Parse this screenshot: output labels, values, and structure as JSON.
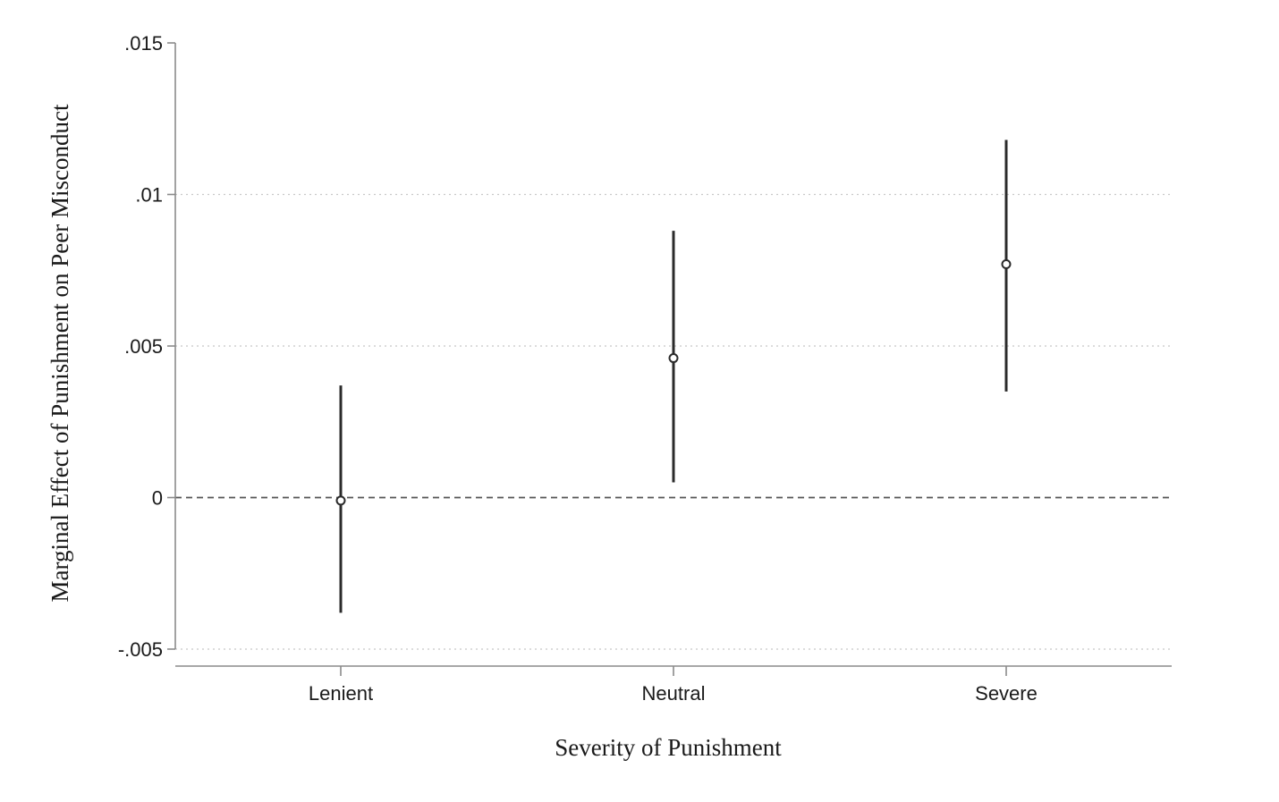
{
  "chart_data": {
    "type": "scatter",
    "subtype": "point-estimate-with-confidence-intervals",
    "title": "",
    "xlabel": "Severity of Punishment",
    "ylabel": "Marginal Effect of Punishment on Peer Misconduct",
    "categories": [
      "Lenient",
      "Neutral",
      "Severe"
    ],
    "estimates": [
      -0.0001,
      0.0046,
      0.0077
    ],
    "ci_lower": [
      -0.0038,
      0.0005,
      0.0035
    ],
    "ci_upper": [
      0.0037,
      0.0088,
      0.0118
    ],
    "ylim": [
      -0.005,
      0.015
    ],
    "yticks": [
      -0.005,
      0,
      0.005,
      0.01,
      0.015
    ],
    "ytick_labels": [
      "-.005",
      "0",
      ".005",
      ".01",
      ".015"
    ],
    "gridlines_at": [
      -0.005,
      0.005,
      0.01
    ],
    "reference_line": 0,
    "colors": {
      "marks": "#2b2b2b",
      "axis": "#8a8a8a",
      "grid": "#c8c8c8"
    }
  }
}
